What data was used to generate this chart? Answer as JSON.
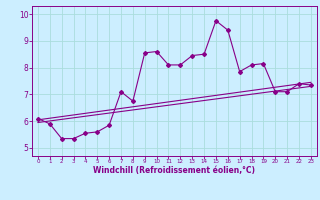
{
  "x": [
    0,
    1,
    2,
    3,
    4,
    5,
    6,
    7,
    8,
    9,
    10,
    11,
    12,
    13,
    14,
    15,
    16,
    17,
    18,
    19,
    20,
    21,
    22,
    23
  ],
  "line1": [
    6.1,
    5.9,
    5.35,
    5.35,
    5.55,
    5.6,
    5.85,
    7.1,
    6.75,
    8.55,
    8.6,
    8.1,
    8.1,
    8.45,
    8.5,
    9.75,
    9.4,
    7.85,
    8.1,
    8.15,
    7.1,
    7.1,
    7.4,
    7.35
  ],
  "line2_x": [
    0,
    23
  ],
  "line2_y": [
    6.05,
    7.45
  ],
  "line3_x": [
    0,
    23
  ],
  "line3_y": [
    5.95,
    7.3
  ],
  "color": "#880088",
  "bg_color": "#cceeff",
  "grid_color": "#aadddd",
  "xlabel": "Windchill (Refroidissement éolien,°C)",
  "ylim": [
    4.7,
    10.3
  ],
  "xlim": [
    -0.5,
    23.5
  ],
  "yticks": [
    5,
    6,
    7,
    8,
    9,
    10
  ],
  "xticks": [
    0,
    1,
    2,
    3,
    4,
    5,
    6,
    7,
    8,
    9,
    10,
    11,
    12,
    13,
    14,
    15,
    16,
    17,
    18,
    19,
    20,
    21,
    22,
    23
  ]
}
